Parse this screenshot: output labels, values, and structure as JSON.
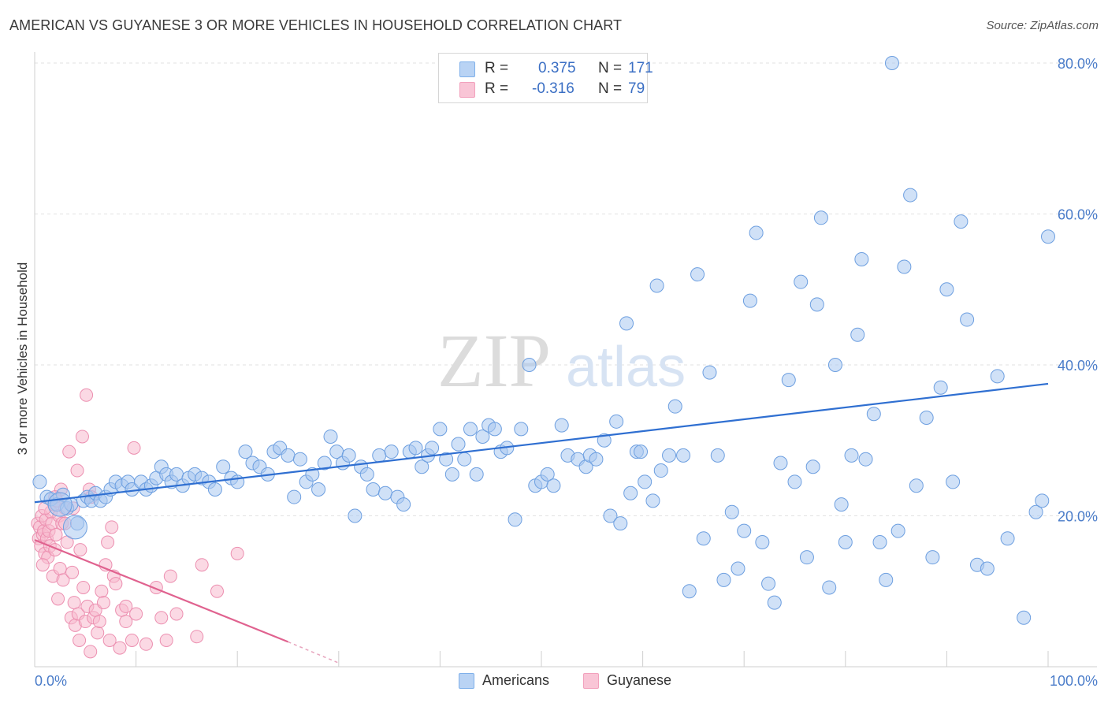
{
  "title": "AMERICAN VS GUYANESE 3 OR MORE VEHICLES IN HOUSEHOLD CORRELATION CHART",
  "source": "Source: ZipAtlas.com",
  "watermark": {
    "zip": "ZIP",
    "atlas": "atlas"
  },
  "legend": {
    "r_label": "R =",
    "n_label": "N =",
    "rows": [
      {
        "r": "0.375",
        "n": "171",
        "color": "#7fb0ea"
      },
      {
        "r": "-0.316",
        "n": "79",
        "color": "#f2a1bd"
      }
    ]
  },
  "bottom_legend": {
    "americans": "Americans",
    "guyanese": "Guyanese"
  },
  "chart_data": {
    "type": "scatter",
    "title": "AMERICAN VS GUYANESE 3 OR MORE VEHICLES IN HOUSEHOLD CORRELATION CHART",
    "xlabel": "",
    "ylabel": "3 or more Vehicles in Household",
    "xlim": [
      0,
      100
    ],
    "ylim": [
      0,
      80
    ],
    "x_tick_labels": [
      "0.0%",
      "100.0%"
    ],
    "y_tick_labels": [
      "20.0%",
      "40.0%",
      "60.0%",
      "80.0%"
    ],
    "y_ticks": [
      20,
      40,
      60,
      80
    ],
    "grid": true,
    "legend_position": "top-center",
    "colors": {
      "americans": "#5b93dc",
      "guyanese": "#ee88aa",
      "americans_line": "#2f6fd1",
      "guyanese_line": "#e0628f"
    },
    "series": [
      {
        "name": "Americans",
        "r": 0.375,
        "n": 171,
        "trend": {
          "x": [
            0,
            100
          ],
          "y": [
            21.8,
            37.5
          ]
        },
        "points": [
          [
            0.5,
            24.5
          ],
          [
            1.2,
            22.5
          ],
          [
            1.6,
            22.2
          ],
          [
            2.2,
            21.5
          ],
          [
            2.8,
            22.8
          ],
          [
            3.2,
            21.0
          ],
          [
            3.6,
            21.5
          ],
          [
            4.2,
            19.0
          ],
          [
            4.8,
            22.0
          ],
          [
            5.2,
            22.5
          ],
          [
            5.6,
            22.0
          ],
          [
            6.0,
            23.0
          ],
          [
            6.5,
            22.0
          ],
          [
            7.0,
            22.5
          ],
          [
            7.5,
            23.5
          ],
          [
            8.0,
            24.5
          ],
          [
            8.6,
            24.0
          ],
          [
            9.2,
            24.5
          ],
          [
            9.6,
            23.5
          ],
          [
            10.5,
            24.5
          ],
          [
            11.0,
            23.5
          ],
          [
            11.5,
            24.0
          ],
          [
            12.0,
            25.0
          ],
          [
            12.5,
            26.5
          ],
          [
            13.0,
            25.5
          ],
          [
            13.5,
            24.5
          ],
          [
            14.0,
            25.5
          ],
          [
            14.6,
            24.0
          ],
          [
            15.2,
            25.0
          ],
          [
            15.8,
            25.5
          ],
          [
            16.5,
            25.0
          ],
          [
            17.2,
            24.5
          ],
          [
            17.8,
            23.5
          ],
          [
            18.6,
            26.5
          ],
          [
            19.4,
            25.0
          ],
          [
            20.0,
            24.5
          ],
          [
            20.8,
            28.5
          ],
          [
            21.5,
            27.0
          ],
          [
            22.2,
            26.5
          ],
          [
            23.0,
            25.5
          ],
          [
            23.6,
            28.5
          ],
          [
            24.2,
            29.0
          ],
          [
            25.0,
            28.0
          ],
          [
            25.6,
            22.5
          ],
          [
            26.2,
            27.5
          ],
          [
            26.8,
            24.5
          ],
          [
            27.4,
            25.5
          ],
          [
            28.0,
            23.5
          ],
          [
            28.6,
            27.0
          ],
          [
            29.2,
            30.5
          ],
          [
            29.8,
            28.5
          ],
          [
            30.4,
            27.0
          ],
          [
            31.0,
            28.0
          ],
          [
            31.6,
            20.0
          ],
          [
            32.2,
            26.5
          ],
          [
            32.8,
            25.5
          ],
          [
            33.4,
            23.5
          ],
          [
            34.0,
            28.0
          ],
          [
            34.6,
            23.0
          ],
          [
            35.2,
            28.5
          ],
          [
            35.8,
            22.5
          ],
          [
            36.4,
            21.5
          ],
          [
            37.0,
            28.5
          ],
          [
            37.6,
            29.0
          ],
          [
            38.2,
            26.5
          ],
          [
            38.8,
            28.0
          ],
          [
            39.2,
            29.0
          ],
          [
            40.0,
            31.5
          ],
          [
            40.6,
            27.5
          ],
          [
            41.2,
            25.5
          ],
          [
            41.8,
            29.5
          ],
          [
            42.4,
            27.5
          ],
          [
            43.0,
            31.5
          ],
          [
            43.6,
            25.5
          ],
          [
            44.2,
            30.5
          ],
          [
            44.8,
            32.0
          ],
          [
            45.4,
            31.5
          ],
          [
            46.0,
            28.5
          ],
          [
            46.6,
            29.0
          ],
          [
            47.4,
            19.5
          ],
          [
            48.0,
            31.5
          ],
          [
            48.8,
            40.0
          ],
          [
            49.4,
            24.0
          ],
          [
            50.0,
            24.5
          ],
          [
            50.6,
            25.5
          ],
          [
            51.2,
            24.0
          ],
          [
            52.0,
            32.0
          ],
          [
            52.6,
            28.0
          ],
          [
            53.6,
            27.5
          ],
          [
            54.4,
            26.5
          ],
          [
            54.8,
            28.0
          ],
          [
            55.4,
            27.5
          ],
          [
            56.2,
            30.0
          ],
          [
            56.8,
            20.0
          ],
          [
            57.4,
            32.5
          ],
          [
            57.8,
            19.0
          ],
          [
            58.4,
            45.5
          ],
          [
            58.8,
            23.0
          ],
          [
            59.4,
            28.5
          ],
          [
            59.8,
            28.5
          ],
          [
            60.2,
            24.5
          ],
          [
            61.0,
            22.0
          ],
          [
            61.4,
            50.5
          ],
          [
            61.8,
            26.0
          ],
          [
            62.6,
            28.0
          ],
          [
            63.2,
            34.5
          ],
          [
            64.0,
            28.0
          ],
          [
            64.6,
            10.0
          ],
          [
            65.4,
            52.0
          ],
          [
            66.0,
            17.0
          ],
          [
            66.6,
            39.0
          ],
          [
            67.4,
            28.0
          ],
          [
            68.0,
            11.5
          ],
          [
            68.8,
            20.5
          ],
          [
            69.4,
            13.0
          ],
          [
            70.0,
            18.0
          ],
          [
            70.6,
            48.5
          ],
          [
            71.2,
            57.5
          ],
          [
            71.8,
            16.5
          ],
          [
            72.4,
            11.0
          ],
          [
            73.0,
            8.5
          ],
          [
            73.6,
            27.0
          ],
          [
            74.4,
            38.0
          ],
          [
            75.0,
            24.5
          ],
          [
            75.6,
            51.0
          ],
          [
            76.2,
            14.5
          ],
          [
            76.8,
            26.5
          ],
          [
            77.2,
            48.0
          ],
          [
            77.6,
            59.5
          ],
          [
            78.4,
            10.5
          ],
          [
            79.0,
            40.0
          ],
          [
            79.6,
            21.5
          ],
          [
            80.0,
            16.5
          ],
          [
            80.6,
            28.0
          ],
          [
            81.2,
            44.0
          ],
          [
            81.6,
            54.0
          ],
          [
            82.0,
            27.5
          ],
          [
            82.8,
            33.5
          ],
          [
            83.4,
            16.5
          ],
          [
            84.0,
            11.5
          ],
          [
            84.6,
            80.0
          ],
          [
            85.2,
            18.0
          ],
          [
            85.8,
            53.0
          ],
          [
            86.4,
            62.5
          ],
          [
            87.0,
            24.0
          ],
          [
            88.0,
            33.0
          ],
          [
            88.6,
            14.5
          ],
          [
            89.4,
            37.0
          ],
          [
            90.0,
            50.0
          ],
          [
            90.6,
            24.5
          ],
          [
            91.4,
            59.0
          ],
          [
            92.0,
            46.0
          ],
          [
            93.0,
            13.5
          ],
          [
            94.0,
            13.0
          ],
          [
            95.0,
            38.5
          ],
          [
            96.0,
            17.0
          ],
          [
            97.6,
            6.5
          ],
          [
            100.0,
            57.0
          ],
          [
            98.8,
            20.5
          ],
          [
            99.4,
            22.0
          ]
        ],
        "large_points": [
          [
            2.5,
            21.5
          ],
          [
            4.0,
            18.5
          ]
        ]
      },
      {
        "name": "Guyanese",
        "r": -0.316,
        "n": 79,
        "trend": {
          "x": [
            0,
            25
          ],
          "y": [
            16.8,
            3.3
          ]
        },
        "trend_dashed_extension": {
          "x": [
            25,
            30
          ],
          "y": [
            3.3,
            0.5
          ]
        },
        "points": [
          [
            0.3,
            19.0
          ],
          [
            0.4,
            17.0
          ],
          [
            0.5,
            18.5
          ],
          [
            0.6,
            16.0
          ],
          [
            0.7,
            20.0
          ],
          [
            0.8,
            17.5
          ],
          [
            0.9,
            18.0
          ],
          [
            1.0,
            15.0
          ],
          [
            1.1,
            19.5
          ],
          [
            1.2,
            17.0
          ],
          [
            1.3,
            14.5
          ],
          [
            1.4,
            18.0
          ],
          [
            1.5,
            16.0
          ],
          [
            1.6,
            20.5
          ],
          [
            1.7,
            19.0
          ],
          [
            1.8,
            12.0
          ],
          [
            1.9,
            21.5
          ],
          [
            2.0,
            15.5
          ],
          [
            2.1,
            17.5
          ],
          [
            2.2,
            22.0
          ],
          [
            2.3,
            9.0
          ],
          [
            2.4,
            20.0
          ],
          [
            2.5,
            13.0
          ],
          [
            2.6,
            23.5
          ],
          [
            2.7,
            19.0
          ],
          [
            2.8,
            11.5
          ],
          [
            3.0,
            21.0
          ],
          [
            3.2,
            16.5
          ],
          [
            3.4,
            28.5
          ],
          [
            3.6,
            6.5
          ],
          [
            3.7,
            12.5
          ],
          [
            3.8,
            21.0
          ],
          [
            3.9,
            8.5
          ],
          [
            4.0,
            5.5
          ],
          [
            4.2,
            26.0
          ],
          [
            4.3,
            7.0
          ],
          [
            4.4,
            3.5
          ],
          [
            4.5,
            15.5
          ],
          [
            4.7,
            30.5
          ],
          [
            4.8,
            10.5
          ],
          [
            5.0,
            6.0
          ],
          [
            5.1,
            36.0
          ],
          [
            5.2,
            8.0
          ],
          [
            5.4,
            23.5
          ],
          [
            5.6,
            22.5
          ],
          [
            5.8,
            6.5
          ],
          [
            6.0,
            7.5
          ],
          [
            6.2,
            4.5
          ],
          [
            6.4,
            6.0
          ],
          [
            6.6,
            10.0
          ],
          [
            6.8,
            8.5
          ],
          [
            7.0,
            13.5
          ],
          [
            7.2,
            16.5
          ],
          [
            7.4,
            3.5
          ],
          [
            7.6,
            18.5
          ],
          [
            7.8,
            12.0
          ],
          [
            8.0,
            11.0
          ],
          [
            8.4,
            2.5
          ],
          [
            8.6,
            7.5
          ],
          [
            9.0,
            6.0
          ],
          [
            9.6,
            3.5
          ],
          [
            9.8,
            29.0
          ],
          [
            10.0,
            7.0
          ],
          [
            11.0,
            3.0
          ],
          [
            12.0,
            10.5
          ],
          [
            13.0,
            3.5
          ],
          [
            13.4,
            12.0
          ],
          [
            14.0,
            7.0
          ],
          [
            16.0,
            4.0
          ],
          [
            16.5,
            13.5
          ],
          [
            18.0,
            10.0
          ],
          [
            20.0,
            15.0
          ],
          [
            1.0,
            21.0
          ],
          [
            2.0,
            22.5
          ],
          [
            0.8,
            13.5
          ],
          [
            3.0,
            19.0
          ],
          [
            5.5,
            2.0
          ],
          [
            9.0,
            8.0
          ],
          [
            12.5,
            6.5
          ]
        ]
      }
    ]
  }
}
